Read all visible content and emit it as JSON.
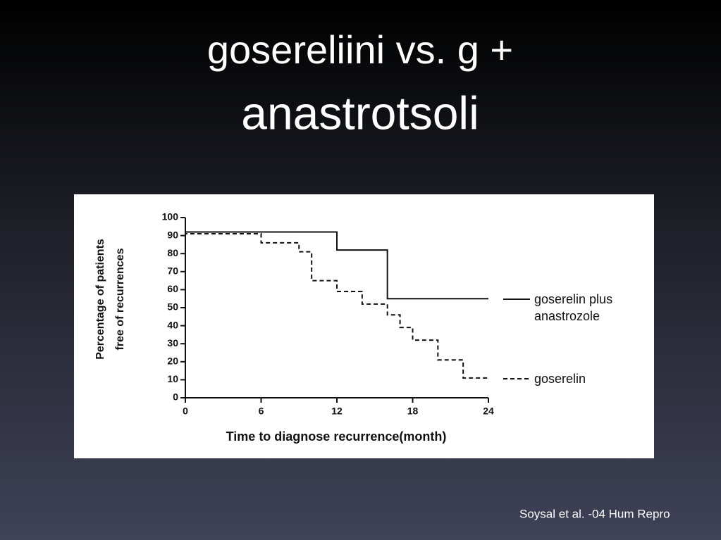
{
  "slide": {
    "title_lines": [
      "gosereliini vs. g +",
      "anastrotsoli"
    ],
    "citation": "Soysal et al. -04 Hum Repro"
  },
  "chart_data": {
    "type": "step",
    "xlabel": "Time to diagnose recurrence(month)",
    "ylabel": [
      "Percentage of patients",
      "free of recurrences"
    ],
    "xlim": [
      0,
      24
    ],
    "xticks": [
      0,
      6,
      12,
      18,
      24
    ],
    "ylim": [
      0,
      100
    ],
    "yticks": [
      0,
      10,
      20,
      30,
      40,
      50,
      60,
      70,
      80,
      90,
      100
    ],
    "series": [
      {
        "name": "goserelin plus anastrozole",
        "color": "#111111",
        "line_style": "solid",
        "x": [
          0,
          12,
          16,
          22,
          24
        ],
        "values": [
          100,
          92,
          82,
          55,
          55
        ]
      },
      {
        "name": "goserelin",
        "color": "#111111",
        "line_style": "dashed",
        "x": [
          0,
          6,
          9,
          10,
          12,
          14,
          16,
          17,
          18,
          20,
          22,
          23,
          24
        ],
        "values": [
          100,
          91,
          86,
          81,
          65,
          59,
          52,
          46,
          39,
          32,
          21,
          11,
          11
        ]
      }
    ]
  }
}
